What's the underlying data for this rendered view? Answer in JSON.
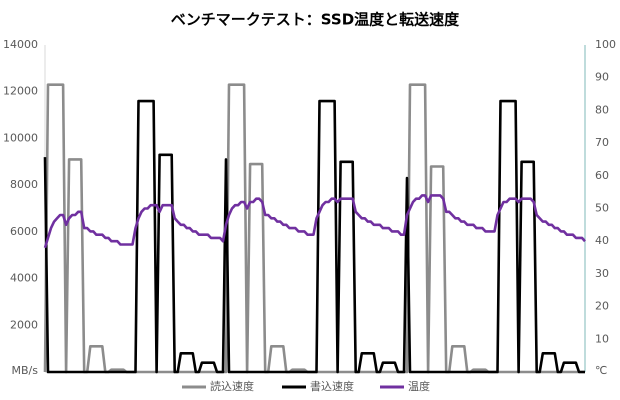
{
  "chart_data": {
    "type": "line",
    "title": "ベンチマークテスト：SSD温度と転送速度",
    "y_label": "MB/s",
    "y2_label": "℃",
    "ylim": [
      0,
      14000
    ],
    "yticks": [
      2000,
      4000,
      6000,
      8000,
      10000,
      12000,
      14000
    ],
    "y2lim": [
      0,
      100
    ],
    "y2ticks": [
      10,
      20,
      30,
      40,
      50,
      60,
      70,
      80,
      90,
      100
    ],
    "grid": false,
    "legend": "bottom",
    "series": [
      {
        "name": "読込速度",
        "color": "#8c8c8c",
        "values": [
          0,
          12300,
          12300,
          12300,
          12300,
          12300,
          12300,
          0,
          9100,
          9100,
          9100,
          9100,
          9100,
          0,
          0,
          1100,
          1100,
          1100,
          1100,
          1100,
          0,
          0,
          100,
          100,
          100,
          100,
          100,
          0,
          0,
          0,
          0,
          0,
          0,
          0,
          0,
          0,
          0,
          0,
          0,
          0,
          0,
          0,
          0,
          0,
          0,
          0,
          0,
          0,
          0,
          0,
          0,
          0,
          0,
          0,
          0,
          0,
          0,
          0,
          0,
          0,
          0,
          12300,
          12300,
          12300,
          12300,
          12300,
          12300,
          0,
          8900,
          8900,
          8900,
          8900,
          8900,
          0,
          0,
          1100,
          1100,
          1100,
          1100,
          1100,
          0,
          0,
          100,
          100,
          100,
          100,
          100,
          0,
          0,
          0,
          0,
          0,
          0,
          0,
          0,
          0,
          0,
          0,
          0,
          0,
          0,
          0,
          0,
          0,
          0,
          0,
          0,
          0,
          0,
          0,
          0,
          0,
          0,
          0,
          0,
          0,
          0,
          0,
          0,
          0,
          0,
          12300,
          12300,
          12300,
          12300,
          12300,
          12300,
          0,
          8800,
          8800,
          8800,
          8800,
          8800,
          0,
          0,
          1100,
          1100,
          1100,
          1100,
          1100,
          0,
          0,
          100,
          100,
          100,
          100,
          100,
          0,
          0,
          0,
          0,
          0,
          0,
          0,
          0,
          0,
          0,
          0,
          0,
          0,
          0,
          0,
          0,
          0,
          0,
          0,
          0,
          0,
          0,
          0,
          0,
          0,
          0,
          0,
          0,
          0,
          0,
          0,
          0,
          0
        ]
      },
      {
        "name": "書込速度",
        "color": "#000000",
        "values": [
          9200,
          0,
          0,
          0,
          0,
          0,
          0,
          0,
          0,
          0,
          0,
          0,
          0,
          0,
          0,
          0,
          0,
          0,
          0,
          0,
          0,
          0,
          0,
          0,
          0,
          0,
          0,
          0,
          0,
          0,
          0,
          11600,
          11600,
          11600,
          11600,
          11600,
          11600,
          0,
          9300,
          9300,
          9300,
          9300,
          9300,
          0,
          0,
          800,
          800,
          800,
          800,
          800,
          0,
          0,
          400,
          400,
          400,
          400,
          400,
          0,
          0,
          0,
          9100,
          0,
          0,
          0,
          0,
          0,
          0,
          0,
          0,
          0,
          0,
          0,
          0,
          0,
          0,
          0,
          0,
          0,
          0,
          0,
          0,
          0,
          0,
          0,
          0,
          0,
          0,
          0,
          0,
          0,
          0,
          11600,
          11600,
          11600,
          11600,
          11600,
          11600,
          0,
          9000,
          9000,
          9000,
          9000,
          9000,
          0,
          0,
          800,
          800,
          800,
          800,
          800,
          0,
          0,
          400,
          400,
          400,
          400,
          400,
          0,
          0,
          0,
          8300,
          0,
          0,
          0,
          0,
          0,
          0,
          0,
          0,
          0,
          0,
          0,
          0,
          0,
          0,
          0,
          0,
          0,
          0,
          0,
          0,
          0,
          0,
          0,
          0,
          0,
          0,
          0,
          0,
          0,
          0,
          11600,
          11600,
          11600,
          11600,
          11600,
          11600,
          0,
          9000,
          9000,
          9000,
          9000,
          9000,
          0,
          0,
          800,
          800,
          800,
          800,
          800,
          0,
          0,
          400,
          400,
          400,
          400,
          400,
          0,
          0,
          0
        ]
      },
      {
        "name": "温度",
        "color": "#7030a0",
        "axis": "y2",
        "values": [
          38,
          41,
          44,
          46,
          47,
          48,
          48,
          45,
          47,
          48,
          48,
          49,
          49,
          44,
          44,
          43,
          43,
          42,
          42,
          42,
          41,
          41,
          40,
          40,
          40,
          39,
          39,
          39,
          39,
          39,
          44,
          47,
          49,
          50,
          50,
          51,
          51,
          51,
          49,
          51,
          51,
          51,
          51,
          47,
          46,
          45,
          45,
          44,
          44,
          43,
          43,
          42,
          42,
          42,
          42,
          41,
          41,
          41,
          41,
          40,
          45,
          48,
          50,
          51,
          51,
          52,
          52,
          50,
          52,
          52,
          53,
          53,
          52,
          48,
          48,
          47,
          47,
          46,
          46,
          45,
          45,
          44,
          44,
          44,
          43,
          43,
          43,
          42,
          42,
          42,
          47,
          49,
          51,
          52,
          52,
          53,
          53,
          52,
          53,
          53,
          53,
          53,
          53,
          49,
          48,
          47,
          47,
          46,
          46,
          45,
          45,
          45,
          44,
          44,
          44,
          43,
          43,
          43,
          42,
          42,
          48,
          50,
          52,
          53,
          53,
          54,
          54,
          52,
          54,
          54,
          54,
          54,
          53,
          49,
          49,
          48,
          47,
          47,
          46,
          46,
          45,
          45,
          45,
          44,
          44,
          44,
          43,
          43,
          43,
          43,
          48,
          50,
          52,
          52,
          53,
          53,
          53,
          52,
          53,
          53,
          53,
          53,
          52,
          48,
          47,
          46,
          46,
          45,
          45,
          44,
          44,
          43,
          43,
          42,
          42,
          42,
          41,
          41,
          41,
          40
        ]
      }
    ]
  }
}
